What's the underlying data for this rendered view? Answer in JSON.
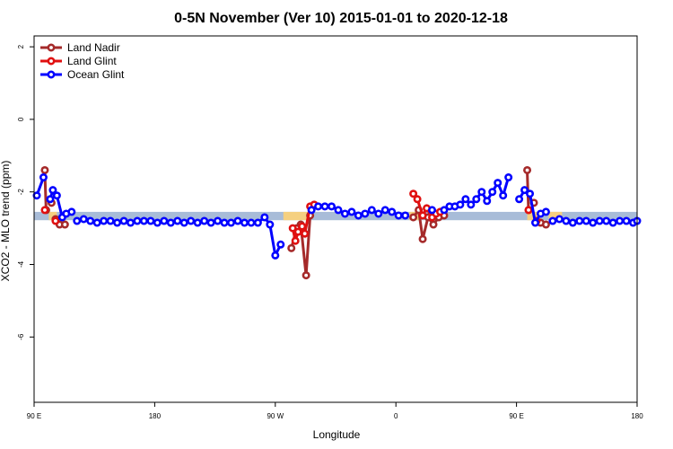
{
  "chart_data": {
    "type": "line",
    "title": "0-5N November (Ver 10)   2015-01-01 to 2020-12-18",
    "xlabel": "Longitude",
    "ylabel": "XCO2 - MLO trend (ppm)",
    "x_ticks": [
      {
        "value": 90,
        "label": "90 E"
      },
      {
        "value": 180,
        "label": "180"
      },
      {
        "value": 270,
        "label": "90 W"
      },
      {
        "value": 360,
        "label": "0"
      },
      {
        "value": 450,
        "label": "90 E"
      },
      {
        "value": 540,
        "label": "180"
      }
    ],
    "y_ticks": [
      {
        "value": 2,
        "label": "2"
      },
      {
        "value": 0,
        "label": "0"
      },
      {
        "value": -2,
        "label": "-2"
      },
      {
        "value": -4,
        "label": "-4"
      },
      {
        "value": -6,
        "label": "-6"
      }
    ],
    "xlim": [
      90,
      540
    ],
    "ylim": [
      -7.8,
      2.3
    ],
    "band": {
      "y_low": -2.78,
      "y_high": -2.55,
      "color": "#a8bcd8",
      "highlight_color": "#f5d080"
    },
    "band_highlights": [
      [
        101,
        107
      ],
      [
        276,
        296
      ],
      [
        370,
        378
      ],
      [
        458,
        468
      ],
      [
        474,
        484
      ]
    ],
    "legend_position": "top-left",
    "series": [
      {
        "name": "Land Nadir",
        "color": "#a52a2a",
        "segments": [
          [
            [
              98,
              -1.4
            ],
            [
              99,
              -2.5
            ]
          ],
          [
            [
              103,
              -2.3
            ]
          ],
          [
            [
              106,
              -2.75
            ],
            [
              109,
              -2.9
            ],
            [
              113,
              -2.9
            ]
          ],
          [
            [
              282,
              -3.55
            ],
            [
              286,
              -3.0
            ],
            [
              289,
              -2.9
            ],
            [
              293,
              -4.3
            ],
            [
              296,
              -2.65
            ],
            [
              298,
              -2.4
            ]
          ],
          [
            [
              373,
              -2.7
            ],
            [
              377,
              -2.5
            ],
            [
              380,
              -3.3
            ],
            [
              384,
              -2.7
            ],
            [
              388,
              -2.9
            ],
            [
              392,
              -2.7
            ],
            [
              396,
              -2.65
            ]
          ],
          [
            [
              458,
              -1.4
            ],
            [
              459,
              -2.5
            ]
          ],
          [
            [
              463,
              -2.3
            ]
          ],
          [
            [
              468,
              -2.85
            ],
            [
              472,
              -2.9
            ]
          ]
        ]
      },
      {
        "name": "Land Glint",
        "color": "#e01010",
        "segments": [
          [
            [
              98,
              -2.5
            ]
          ],
          [
            [
              106,
              -2.8
            ]
          ],
          [
            [
              283,
              -3.0
            ],
            [
              285,
              -3.35
            ],
            [
              287,
              -3.1
            ],
            [
              290,
              -2.95
            ],
            [
              292,
              -3.15
            ],
            [
              296,
              -2.4
            ],
            [
              299,
              -2.35
            ]
          ],
          [
            [
              373,
              -2.05
            ],
            [
              376,
              -2.2
            ],
            [
              380,
              -2.65
            ],
            [
              383,
              -2.45
            ],
            [
              387,
              -2.7
            ],
            [
              390,
              -2.6
            ],
            [
              393,
              -2.55
            ]
          ],
          [
            [
              459,
              -2.5
            ]
          ],
          [
            [
              465,
              -2.8
            ]
          ]
        ]
      },
      {
        "name": "Ocean Glint",
        "color": "#0000ff",
        "segments": [
          [
            [
              92,
              -2.1
            ],
            [
              97,
              -1.6
            ]
          ],
          [
            [
              107,
              -2.1
            ],
            [
              111,
              -2.7
            ],
            [
              114,
              -2.6
            ],
            [
              118,
              -2.55
            ]
          ],
          [
            [
              102,
              -2.2
            ],
            [
              104,
              -1.95
            ]
          ],
          [
            [
              122,
              -2.8
            ],
            [
              127,
              -2.75
            ],
            [
              132,
              -2.8
            ],
            [
              137,
              -2.85
            ],
            [
              142,
              -2.8
            ],
            [
              147,
              -2.8
            ],
            [
              152,
              -2.85
            ],
            [
              157,
              -2.8
            ],
            [
              162,
              -2.85
            ],
            [
              167,
              -2.8
            ],
            [
              172,
              -2.8
            ],
            [
              177,
              -2.8
            ],
            [
              182,
              -2.85
            ],
            [
              187,
              -2.8
            ],
            [
              192,
              -2.85
            ],
            [
              197,
              -2.8
            ],
            [
              202,
              -2.85
            ],
            [
              207,
              -2.8
            ],
            [
              212,
              -2.85
            ],
            [
              217,
              -2.8
            ],
            [
              222,
              -2.85
            ],
            [
              227,
              -2.8
            ],
            [
              232,
              -2.85
            ],
            [
              237,
              -2.85
            ],
            [
              242,
              -2.8
            ],
            [
              247,
              -2.85
            ],
            [
              252,
              -2.85
            ],
            [
              257,
              -2.85
            ],
            [
              262,
              -2.7
            ],
            [
              266,
              -2.9
            ],
            [
              270,
              -3.75
            ],
            [
              274,
              -3.45
            ]
          ],
          [
            [
              297,
              -2.5
            ],
            [
              302,
              -2.4
            ],
            [
              307,
              -2.4
            ],
            [
              312,
              -2.4
            ],
            [
              317,
              -2.5
            ],
            [
              322,
              -2.6
            ],
            [
              327,
              -2.55
            ],
            [
              332,
              -2.65
            ],
            [
              337,
              -2.6
            ],
            [
              342,
              -2.5
            ],
            [
              347,
              -2.6
            ],
            [
              352,
              -2.5
            ],
            [
              357,
              -2.55
            ],
            [
              362,
              -2.65
            ],
            [
              367,
              -2.65
            ]
          ],
          [
            [
              387,
              -2.5
            ]
          ],
          [
            [
              396,
              -2.5
            ],
            [
              400,
              -2.4
            ],
            [
              404,
              -2.4
            ],
            [
              408,
              -2.35
            ],
            [
              412,
              -2.2
            ],
            [
              416,
              -2.35
            ],
            [
              420,
              -2.2
            ],
            [
              424,
              -2.0
            ],
            [
              428,
              -2.25
            ],
            [
              432,
              -2.0
            ],
            [
              436,
              -1.75
            ],
            [
              440,
              -2.1
            ],
            [
              444,
              -1.6
            ]
          ],
          [
            [
              452,
              -2.2
            ],
            [
              456,
              -1.95
            ],
            [
              460,
              -2.05
            ],
            [
              464,
              -2.85
            ],
            [
              468,
              -2.6
            ],
            [
              472,
              -2.55
            ]
          ],
          [
            [
              477,
              -2.8
            ],
            [
              482,
              -2.75
            ],
            [
              487,
              -2.8
            ],
            [
              492,
              -2.85
            ],
            [
              497,
              -2.8
            ],
            [
              502,
              -2.8
            ],
            [
              507,
              -2.85
            ],
            [
              512,
              -2.8
            ],
            [
              517,
              -2.8
            ],
            [
              522,
              -2.85
            ],
            [
              527,
              -2.8
            ],
            [
              532,
              -2.8
            ],
            [
              537,
              -2.85
            ],
            [
              540,
              -2.8
            ]
          ]
        ]
      }
    ]
  }
}
